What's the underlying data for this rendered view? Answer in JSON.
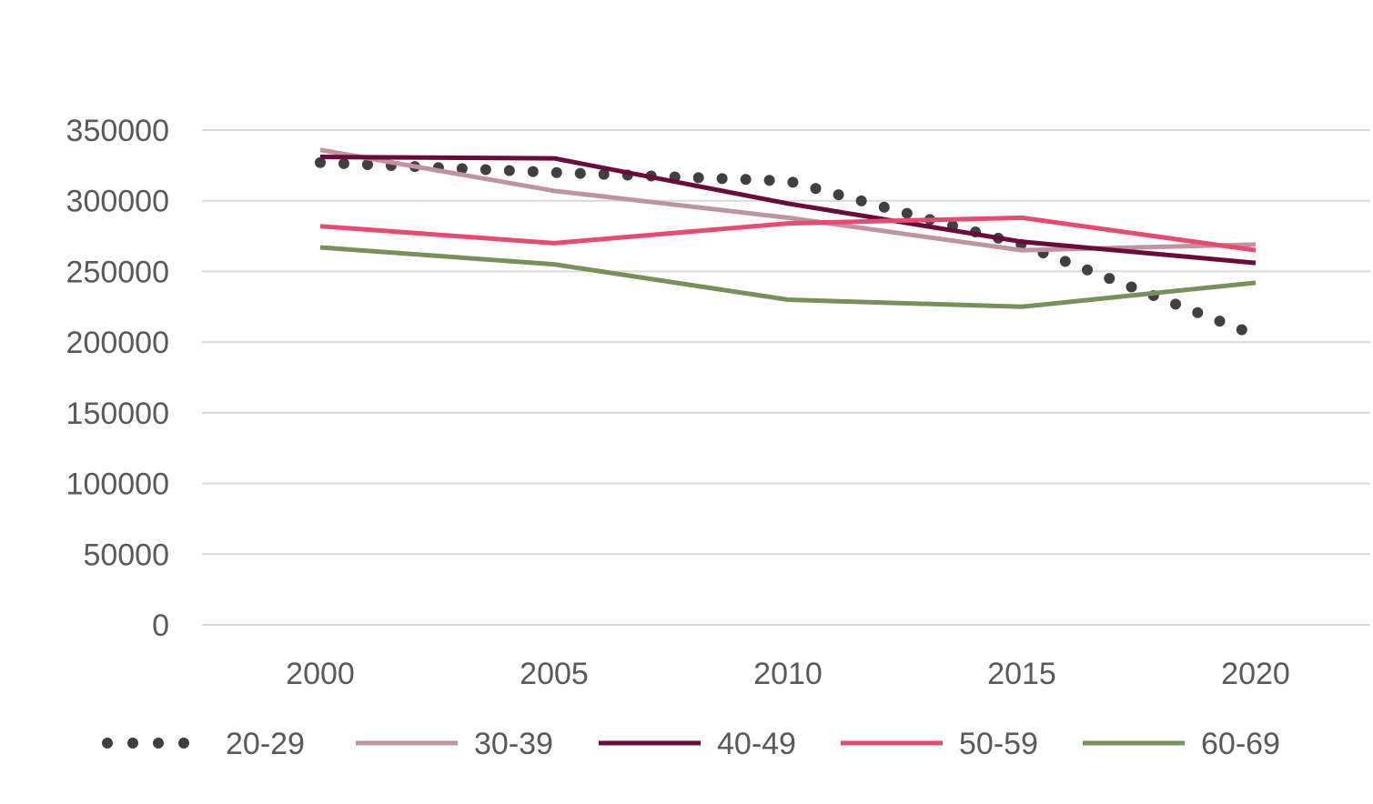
{
  "chart_data": {
    "type": "line",
    "title": "",
    "xlabel": "",
    "ylabel": "",
    "x": [
      2000,
      2005,
      2010,
      2015,
      2020
    ],
    "ylim": [
      0,
      350000
    ],
    "yticks": [
      0,
      50000,
      100000,
      150000,
      200000,
      250000,
      300000,
      350000
    ],
    "ytick_labels": [
      "0",
      "50000",
      "100000",
      "150000",
      "200000",
      "250000",
      "300000",
      "350000"
    ],
    "xtick_labels": [
      "2000",
      "2005",
      "2010",
      "2015",
      "2020"
    ],
    "grid": "horizontal",
    "legend": "bottom",
    "series": [
      {
        "name": "20-29",
        "values": [
          327000,
          320000,
          314000,
          269000,
          205000
        ],
        "color": "#404040",
        "style": "dotted"
      },
      {
        "name": "30-39",
        "values": [
          336000,
          307000,
          288000,
          265000,
          269000
        ],
        "color": "#c0949e",
        "style": "solid"
      },
      {
        "name": "40-49",
        "values": [
          331000,
          330000,
          298000,
          271000,
          256000
        ],
        "color": "#6b0a3c",
        "style": "solid"
      },
      {
        "name": "50-59",
        "values": [
          282000,
          270000,
          284000,
          288000,
          265000
        ],
        "color": "#e84a72",
        "style": "solid"
      },
      {
        "name": "60-69",
        "values": [
          267000,
          255000,
          230000,
          225000,
          242000
        ],
        "color": "#76915a",
        "style": "solid"
      }
    ]
  }
}
